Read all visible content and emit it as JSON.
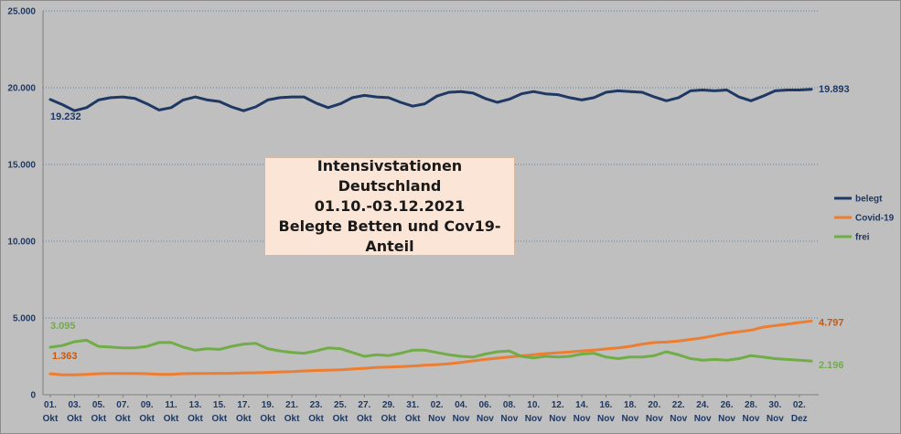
{
  "chart_data": {
    "type": "line",
    "title_lines": [
      "Intensivstationen Deutschland",
      "01.10.-03.12.2021",
      "Belegte Betten und Cov19-",
      "Anteil"
    ],
    "ylim": [
      0,
      25000
    ],
    "yticks": [
      "0",
      "5.000",
      "10.000",
      "15.000",
      "20.000",
      "25.000"
    ],
    "ytick_values": [
      0,
      5000,
      10000,
      15000,
      20000,
      25000
    ],
    "grid": true,
    "legend_position": "right",
    "x": [
      "01.10",
      "02.10",
      "03.10",
      "04.10",
      "05.10",
      "06.10",
      "07.10",
      "08.10",
      "09.10",
      "10.10",
      "11.10",
      "12.10",
      "13.10",
      "14.10",
      "15.10",
      "16.10",
      "17.10",
      "18.10",
      "19.10",
      "20.10",
      "21.10",
      "22.10",
      "23.10",
      "24.10",
      "25.10",
      "26.10",
      "27.10",
      "28.10",
      "29.10",
      "30.10",
      "31.10",
      "01.11",
      "02.11",
      "03.11",
      "04.11",
      "05.11",
      "06.11",
      "07.11",
      "08.11",
      "09.11",
      "10.11",
      "11.11",
      "12.11",
      "13.11",
      "14.11",
      "15.11",
      "16.11",
      "17.11",
      "18.11",
      "19.11",
      "20.11",
      "21.11",
      "22.11",
      "23.11",
      "24.11",
      "25.11",
      "26.11",
      "27.11",
      "28.11",
      "29.11",
      "30.11",
      "01.12",
      "02.12",
      "03.12"
    ],
    "xtick_labels": [
      {
        "day": "01.",
        "month": "Okt"
      },
      {
        "day": "03.",
        "month": "Okt"
      },
      {
        "day": "05.",
        "month": "Okt"
      },
      {
        "day": "07.",
        "month": "Okt"
      },
      {
        "day": "09.",
        "month": "Okt"
      },
      {
        "day": "11.",
        "month": "Okt"
      },
      {
        "day": "13.",
        "month": "Okt"
      },
      {
        "day": "15.",
        "month": "Okt"
      },
      {
        "day": "17.",
        "month": "Okt"
      },
      {
        "day": "19.",
        "month": "Okt"
      },
      {
        "day": "21.",
        "month": "Okt"
      },
      {
        "day": "23.",
        "month": "Okt"
      },
      {
        "day": "25.",
        "month": "Okt"
      },
      {
        "day": "27.",
        "month": "Okt"
      },
      {
        "day": "29.",
        "month": "Okt"
      },
      {
        "day": "31.",
        "month": "Okt"
      },
      {
        "day": "02.",
        "month": "Nov"
      },
      {
        "day": "04.",
        "month": "Nov"
      },
      {
        "day": "06.",
        "month": "Nov"
      },
      {
        "day": "08.",
        "month": "Nov"
      },
      {
        "day": "10.",
        "month": "Nov"
      },
      {
        "day": "12.",
        "month": "Nov"
      },
      {
        "day": "14.",
        "month": "Nov"
      },
      {
        "day": "16.",
        "month": "Nov"
      },
      {
        "day": "18.",
        "month": "Nov"
      },
      {
        "day": "20.",
        "month": "Nov"
      },
      {
        "day": "22.",
        "month": "Nov"
      },
      {
        "day": "24.",
        "month": "Nov"
      },
      {
        "day": "26.",
        "month": "Nov"
      },
      {
        "day": "28.",
        "month": "Nov"
      },
      {
        "day": "30.",
        "month": "Nov"
      },
      {
        "day": "02.",
        "month": "Dez"
      }
    ],
    "series": [
      {
        "name": "belegt",
        "color": "#1f3864",
        "values": [
          19232,
          18900,
          18500,
          18700,
          19200,
          19350,
          19400,
          19300,
          18950,
          18550,
          18700,
          19200,
          19400,
          19200,
          19100,
          18750,
          18500,
          18750,
          19200,
          19350,
          19400,
          19400,
          19000,
          18700,
          18950,
          19350,
          19500,
          19400,
          19350,
          19050,
          18800,
          18950,
          19450,
          19700,
          19750,
          19650,
          19300,
          19050,
          19250,
          19600,
          19750,
          19600,
          19550,
          19350,
          19200,
          19350,
          19700,
          19800,
          19750,
          19700,
          19400,
          19150,
          19350,
          19800,
          19850,
          19800,
          19850,
          19400,
          19150,
          19450,
          19800,
          19850,
          19850,
          19893
        ],
        "start_label": "19.232",
        "end_label": "19.893"
      },
      {
        "name": "Covid-19",
        "color": "#ed7d31",
        "values": [
          1363,
          1300,
          1300,
          1330,
          1370,
          1380,
          1380,
          1380,
          1370,
          1330,
          1330,
          1370,
          1380,
          1380,
          1390,
          1390,
          1420,
          1430,
          1450,
          1480,
          1500,
          1550,
          1580,
          1600,
          1620,
          1670,
          1720,
          1780,
          1800,
          1830,
          1870,
          1920,
          1960,
          2020,
          2100,
          2200,
          2300,
          2380,
          2450,
          2530,
          2600,
          2680,
          2730,
          2780,
          2850,
          2900,
          2980,
          3050,
          3150,
          3300,
          3400,
          3430,
          3500,
          3600,
          3700,
          3850,
          4000,
          4100,
          4200,
          4400,
          4500,
          4600,
          4700,
          4797
        ],
        "start_label": "1.363",
        "end_label": "4.797"
      },
      {
        "name": "frei",
        "color": "#70ad47",
        "values": [
          3095,
          3200,
          3450,
          3550,
          3150,
          3100,
          3050,
          3050,
          3150,
          3400,
          3400,
          3100,
          2900,
          3000,
          2950,
          3150,
          3300,
          3350,
          3000,
          2850,
          2750,
          2700,
          2850,
          3050,
          3000,
          2750,
          2500,
          2600,
          2550,
          2700,
          2900,
          2900,
          2750,
          2600,
          2500,
          2450,
          2650,
          2800,
          2850,
          2500,
          2400,
          2500,
          2450,
          2500,
          2650,
          2700,
          2450,
          2350,
          2450,
          2450,
          2550,
          2800,
          2600,
          2350,
          2250,
          2300,
          2250,
          2350,
          2550,
          2450,
          2350,
          2300,
          2250,
          2196
        ],
        "start_label": "3.095",
        "end_label": "2.196"
      }
    ]
  }
}
